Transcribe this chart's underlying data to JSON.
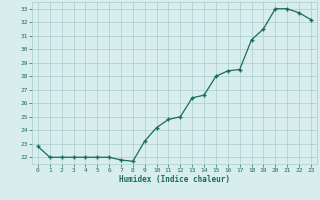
{
  "x": [
    0,
    1,
    2,
    3,
    4,
    5,
    6,
    7,
    8,
    9,
    10,
    11,
    12,
    13,
    14,
    15,
    16,
    17,
    18,
    19,
    20,
    21,
    22,
    23
  ],
  "y": [
    22.8,
    22.0,
    22.0,
    22.0,
    22.0,
    22.0,
    22.0,
    21.8,
    21.7,
    23.2,
    24.2,
    24.8,
    25.0,
    26.4,
    26.6,
    28.0,
    28.4,
    28.5,
    30.7,
    31.5,
    33.0,
    33.0,
    32.7,
    32.2
  ],
  "xlabel": "Humidex (Indice chaleur)",
  "xlim": [
    -0.5,
    23.5
  ],
  "ylim": [
    21.5,
    33.5
  ],
  "yticks": [
    22,
    23,
    24,
    25,
    26,
    27,
    28,
    29,
    30,
    31,
    32,
    33
  ],
  "xticks": [
    0,
    1,
    2,
    3,
    4,
    5,
    6,
    7,
    8,
    9,
    10,
    11,
    12,
    13,
    14,
    15,
    16,
    17,
    18,
    19,
    20,
    21,
    22,
    23
  ],
  "line_color": "#1a6b5a",
  "bg_color": "#d8eeee",
  "grid_color": "#aacccc",
  "font_color": "#1a6b5a"
}
